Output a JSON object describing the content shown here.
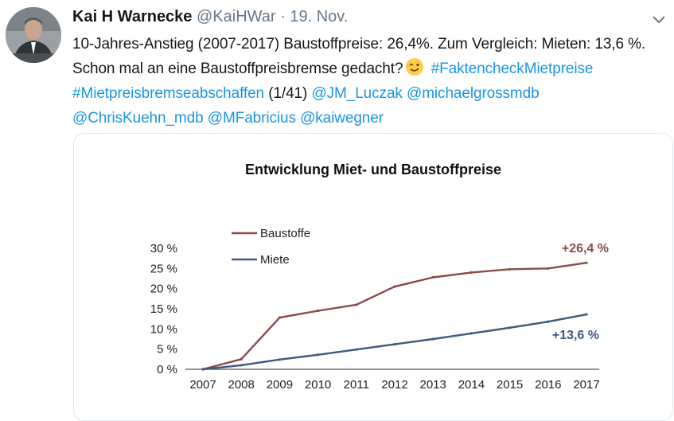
{
  "tweet": {
    "author_name": "Kai H Warnecke",
    "author_handle": "@KaiHWar",
    "separator": "·",
    "date": "19. Nov.",
    "text_main": "10-Jahres-Anstieg (2007-2017) Baustoffpreise: 26,4%. Zum Vergleich: Mieten: 13,6 %. Schon mal an eine Baustoffpreisbremse gedacht?",
    "hashtag_1": "#FaktencheckMietpreise",
    "hashtag_2": "#Mietpreisbremseabschaffen",
    "thread_count": "(1/41)",
    "mentions": [
      "@JM_Luczak",
      "@michaelgrossmdb",
      "@ChrisKuehn_mdb",
      "@MFabricius",
      "@kaiwegner"
    ],
    "icons": {
      "avatar": "avatar-photo",
      "menu": "chevron-down-icon",
      "emoji": "wink-emoji-icon"
    }
  },
  "colors": {
    "link": "#1b95e0",
    "baustoffe": "#8b4a4a",
    "miete": "#3d5a80"
  },
  "chart_data": {
    "type": "line",
    "title": "Entwicklung Miet- und Baustoffpreise",
    "categories": [
      "2007",
      "2008",
      "2009",
      "2010",
      "2011",
      "2012",
      "2013",
      "2014",
      "2015",
      "2016",
      "2017"
    ],
    "y_ticks": [
      "0 %",
      "5 %",
      "10 %",
      "15 %",
      "20 %",
      "25 %",
      "30 %"
    ],
    "ylim": [
      0,
      30
    ],
    "series": [
      {
        "name": "Baustoffe",
        "values": [
          0,
          2.5,
          12.8,
          14.5,
          16,
          20.5,
          22.8,
          24,
          24.8,
          25,
          26.4
        ],
        "end_label": "+26,4 %"
      },
      {
        "name": "Miete",
        "values": [
          0,
          1.0,
          2.4,
          3.6,
          4.9,
          6.2,
          7.5,
          8.9,
          10.3,
          11.8,
          13.6
        ],
        "end_label": "+13,6 %"
      }
    ],
    "legend_position": "top-left",
    "grid": false
  }
}
